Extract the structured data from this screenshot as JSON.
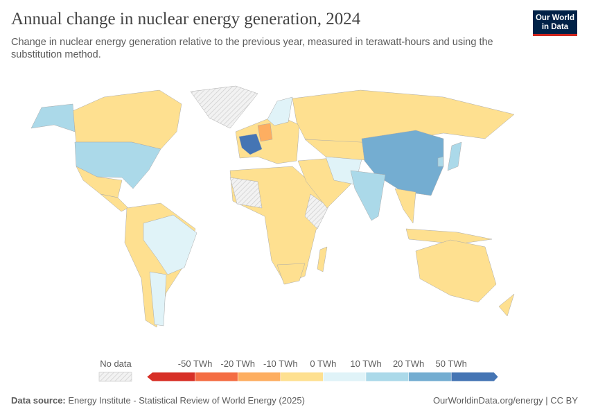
{
  "header": {
    "title": "Annual change in nuclear energy generation, 2024",
    "subtitle": "Change in nuclear energy generation relative to the previous year, measured in terawatt-hours and using the substitution method.",
    "logo": "Our World in Data"
  },
  "chart_data": {
    "type": "map",
    "title": "Annual change in nuclear energy generation, 2024",
    "unit": "TWh",
    "legend": {
      "no_data_label": "No data",
      "no_data_color": "#e8e8e8",
      "tick_labels": [
        "-50 TWh",
        "-20 TWh",
        "-10 TWh",
        "0 TWh",
        "10 TWh",
        "20 TWh",
        "50 TWh"
      ],
      "bins": [
        {
          "range": "< -50",
          "color": "#d73027"
        },
        {
          "range": "-50 to -20",
          "color": "#f46d43"
        },
        {
          "range": "-20 to -10",
          "color": "#fdae61"
        },
        {
          "range": "-10 to 0",
          "color": "#fee090"
        },
        {
          "range": "0 to 10",
          "color": "#e0f3f8"
        },
        {
          "range": "10 to 20",
          "color": "#abd9e9"
        },
        {
          "range": "20 to 50",
          "color": "#74add1"
        },
        {
          "range": "> 50",
          "color": "#4575b4"
        }
      ]
    },
    "regions": [
      {
        "name": "Canada",
        "bin": 3
      },
      {
        "name": "United States",
        "bin": 5
      },
      {
        "name": "Alaska (US)",
        "bin": 5
      },
      {
        "name": "Greenland",
        "bin": null
      },
      {
        "name": "Mexico",
        "bin": 3
      },
      {
        "name": "Central America",
        "bin": 3
      },
      {
        "name": "South America",
        "bin": 3
      },
      {
        "name": "Brazil",
        "bin": 4
      },
      {
        "name": "Argentina",
        "bin": 4
      },
      {
        "name": "Europe",
        "bin": 3
      },
      {
        "name": "France",
        "bin": 7
      },
      {
        "name": "Germany",
        "bin": 2
      },
      {
        "name": "Sweden",
        "bin": 4
      },
      {
        "name": "Russia",
        "bin": 3
      },
      {
        "name": "Africa",
        "bin": 3
      },
      {
        "name": "Sahara (no data)",
        "bin": null
      },
      {
        "name": "Horn of Africa (no data)",
        "bin": null
      },
      {
        "name": "South Africa",
        "bin": 3
      },
      {
        "name": "Madagascar",
        "bin": 3
      },
      {
        "name": "Middle East",
        "bin": 3
      },
      {
        "name": "Iran",
        "bin": 4
      },
      {
        "name": "Central Asia",
        "bin": 3
      },
      {
        "name": "China",
        "bin": 6
      },
      {
        "name": "India",
        "bin": 5
      },
      {
        "name": "Southeast Asia",
        "bin": 3
      },
      {
        "name": "Japan",
        "bin": 5
      },
      {
        "name": "South Korea",
        "bin": 5
      },
      {
        "name": "Indonesia",
        "bin": 3
      },
      {
        "name": "Australia",
        "bin": 3
      },
      {
        "name": "New Zealand",
        "bin": 3
      }
    ]
  },
  "footer": {
    "source_label": "Data source:",
    "source": "Energy Institute - Statistical Review of World Energy (2025)",
    "link": "OurWorldinData.org/energy | CC BY"
  }
}
